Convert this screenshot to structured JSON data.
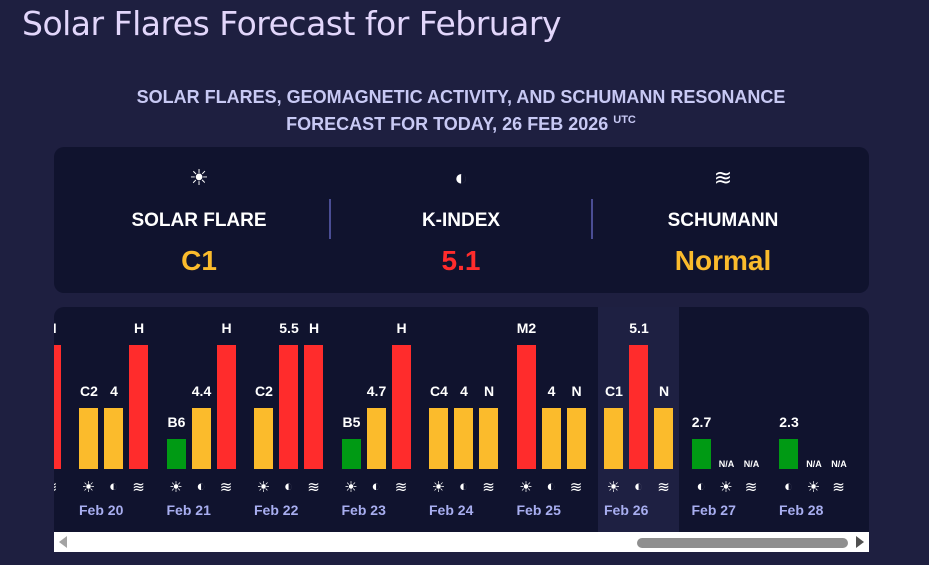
{
  "page_title": "Solar Flares Forecast for February",
  "subtitle_line1": "SOLAR FLARES, GEOMAGNETIC ACTIVITY, AND SCHUMANN RESONANCE",
  "subtitle_line2": "FORECAST FOR TODAY, 26 FEB 2026",
  "subtitle_tz": "UTC",
  "colors": {
    "low": "#009a14",
    "mid": "#fbbb2c",
    "high": "#ff2c2c"
  },
  "today": {
    "solar": {
      "icon": "sun-icon",
      "label": "SOLAR FLARE",
      "value": "C1",
      "color": "#fbbb2c"
    },
    "kindex": {
      "icon": "magnet-icon",
      "label": "K-INDEX",
      "value": "5.1",
      "color": "#ff2c2c"
    },
    "schumann": {
      "icon": "waves-icon",
      "label": "SCHUMANN",
      "value": "Normal",
      "color": "#fbbb2c"
    }
  },
  "days": [
    {
      "date": "",
      "bars": [
        {
          "type": "schumann",
          "label": "H",
          "level": "high"
        }
      ],
      "partial": true
    },
    {
      "date": "Feb 20",
      "bars": [
        {
          "type": "solar",
          "label": "C2",
          "level": "mid"
        },
        {
          "type": "kindex",
          "label": "4",
          "level": "mid"
        },
        {
          "type": "schumann",
          "label": "H",
          "level": "high"
        }
      ]
    },
    {
      "date": "Feb 21",
      "bars": [
        {
          "type": "solar",
          "label": "B6",
          "level": "low"
        },
        {
          "type": "kindex",
          "label": "4.4",
          "level": "mid"
        },
        {
          "type": "schumann",
          "label": "H",
          "level": "high"
        }
      ]
    },
    {
      "date": "Feb 22",
      "bars": [
        {
          "type": "solar",
          "label": "C2",
          "level": "mid"
        },
        {
          "type": "kindex",
          "label": "5.5",
          "level": "high"
        },
        {
          "type": "schumann",
          "label": "H",
          "level": "high"
        }
      ]
    },
    {
      "date": "Feb 23",
      "bars": [
        {
          "type": "solar",
          "label": "B5",
          "level": "low"
        },
        {
          "type": "kindex",
          "label": "4.7",
          "level": "mid"
        },
        {
          "type": "schumann",
          "label": "H",
          "level": "high"
        }
      ]
    },
    {
      "date": "Feb 24",
      "bars": [
        {
          "type": "solar",
          "label": "C4",
          "level": "mid"
        },
        {
          "type": "kindex",
          "label": "4",
          "level": "mid"
        },
        {
          "type": "schumann",
          "label": "N",
          "level": "mid"
        }
      ]
    },
    {
      "date": "Feb 25",
      "bars": [
        {
          "type": "solar",
          "label": "M2",
          "level": "high"
        },
        {
          "type": "kindex",
          "label": "4",
          "level": "mid"
        },
        {
          "type": "schumann",
          "label": "N",
          "level": "mid"
        }
      ]
    },
    {
      "date": "Feb 26",
      "today": true,
      "bars": [
        {
          "type": "solar",
          "label": "C1",
          "level": "mid"
        },
        {
          "type": "kindex",
          "label": "5.1",
          "level": "high"
        },
        {
          "type": "schumann",
          "label": "N",
          "level": "mid"
        }
      ]
    },
    {
      "date": "Feb 27",
      "bars": [
        {
          "type": "kindex",
          "label": "2.7",
          "level": "low"
        },
        {
          "type": "solar",
          "label": "N/A",
          "level": "none"
        },
        {
          "type": "schumann",
          "label": "N/A",
          "level": "none"
        }
      ]
    },
    {
      "date": "Feb 28",
      "bars": [
        {
          "type": "kindex",
          "label": "2.3",
          "level": "low"
        },
        {
          "type": "solar",
          "label": "N/A",
          "level": "none"
        },
        {
          "type": "schumann",
          "label": "N/A",
          "level": "none"
        }
      ]
    }
  ]
}
